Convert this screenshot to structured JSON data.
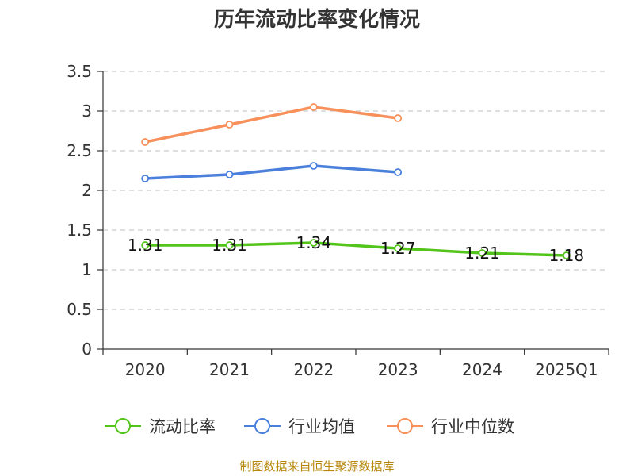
{
  "chart_data": {
    "type": "line",
    "title": "历年流动比率变化情况",
    "categories": [
      "2020",
      "2021",
      "2022",
      "2023",
      "2024",
      "2025Q1"
    ],
    "ylim": [
      0,
      3.5
    ],
    "yticks": [
      0,
      0.5,
      1,
      1.5,
      2,
      2.5,
      3,
      3.5
    ],
    "ytick_labels": [
      "0",
      "0.5",
      "1",
      "1.5",
      "2",
      "2.5",
      "3",
      "3.5"
    ],
    "grid": true,
    "legend_position": "bottom",
    "series": [
      {
        "name": "流动比率",
        "color": "#52c41a",
        "values": [
          1.31,
          1.31,
          1.34,
          1.27,
          1.21,
          1.18
        ],
        "labels": [
          "1.31",
          "1.31",
          "1.34",
          "1.27",
          "1.21",
          "1.18"
        ]
      },
      {
        "name": "行业均值",
        "color": "#4a7fdb",
        "values": [
          2.15,
          2.2,
          2.31,
          2.23,
          null,
          null
        ]
      },
      {
        "name": "行业中位数",
        "color": "#f7905a",
        "values": [
          2.61,
          2.83,
          3.05,
          2.91,
          null,
          null
        ]
      }
    ]
  },
  "source": "制图数据来自恒生聚源数据库"
}
